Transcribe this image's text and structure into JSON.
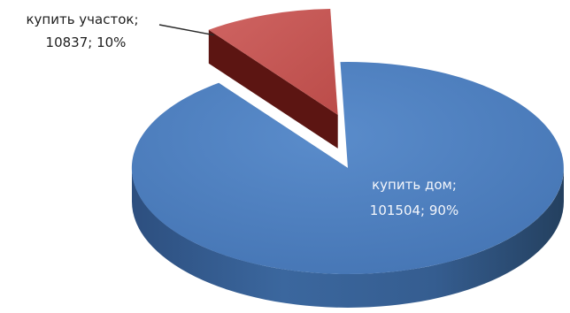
{
  "chart_data": {
    "type": "pie",
    "style": "3d-exploded",
    "slices": [
      {
        "label": "купить дом",
        "value": 101504,
        "percent": 90,
        "color": "#4f81bd",
        "label_line1": "купить дом;",
        "label_line2": "101504; 90%"
      },
      {
        "label": "купить участок",
        "value": 10837,
        "percent": 10,
        "color": "#c0504d",
        "exploded": true,
        "label_line1": "купить участок;",
        "label_line2": "10837; 10%"
      }
    ]
  }
}
